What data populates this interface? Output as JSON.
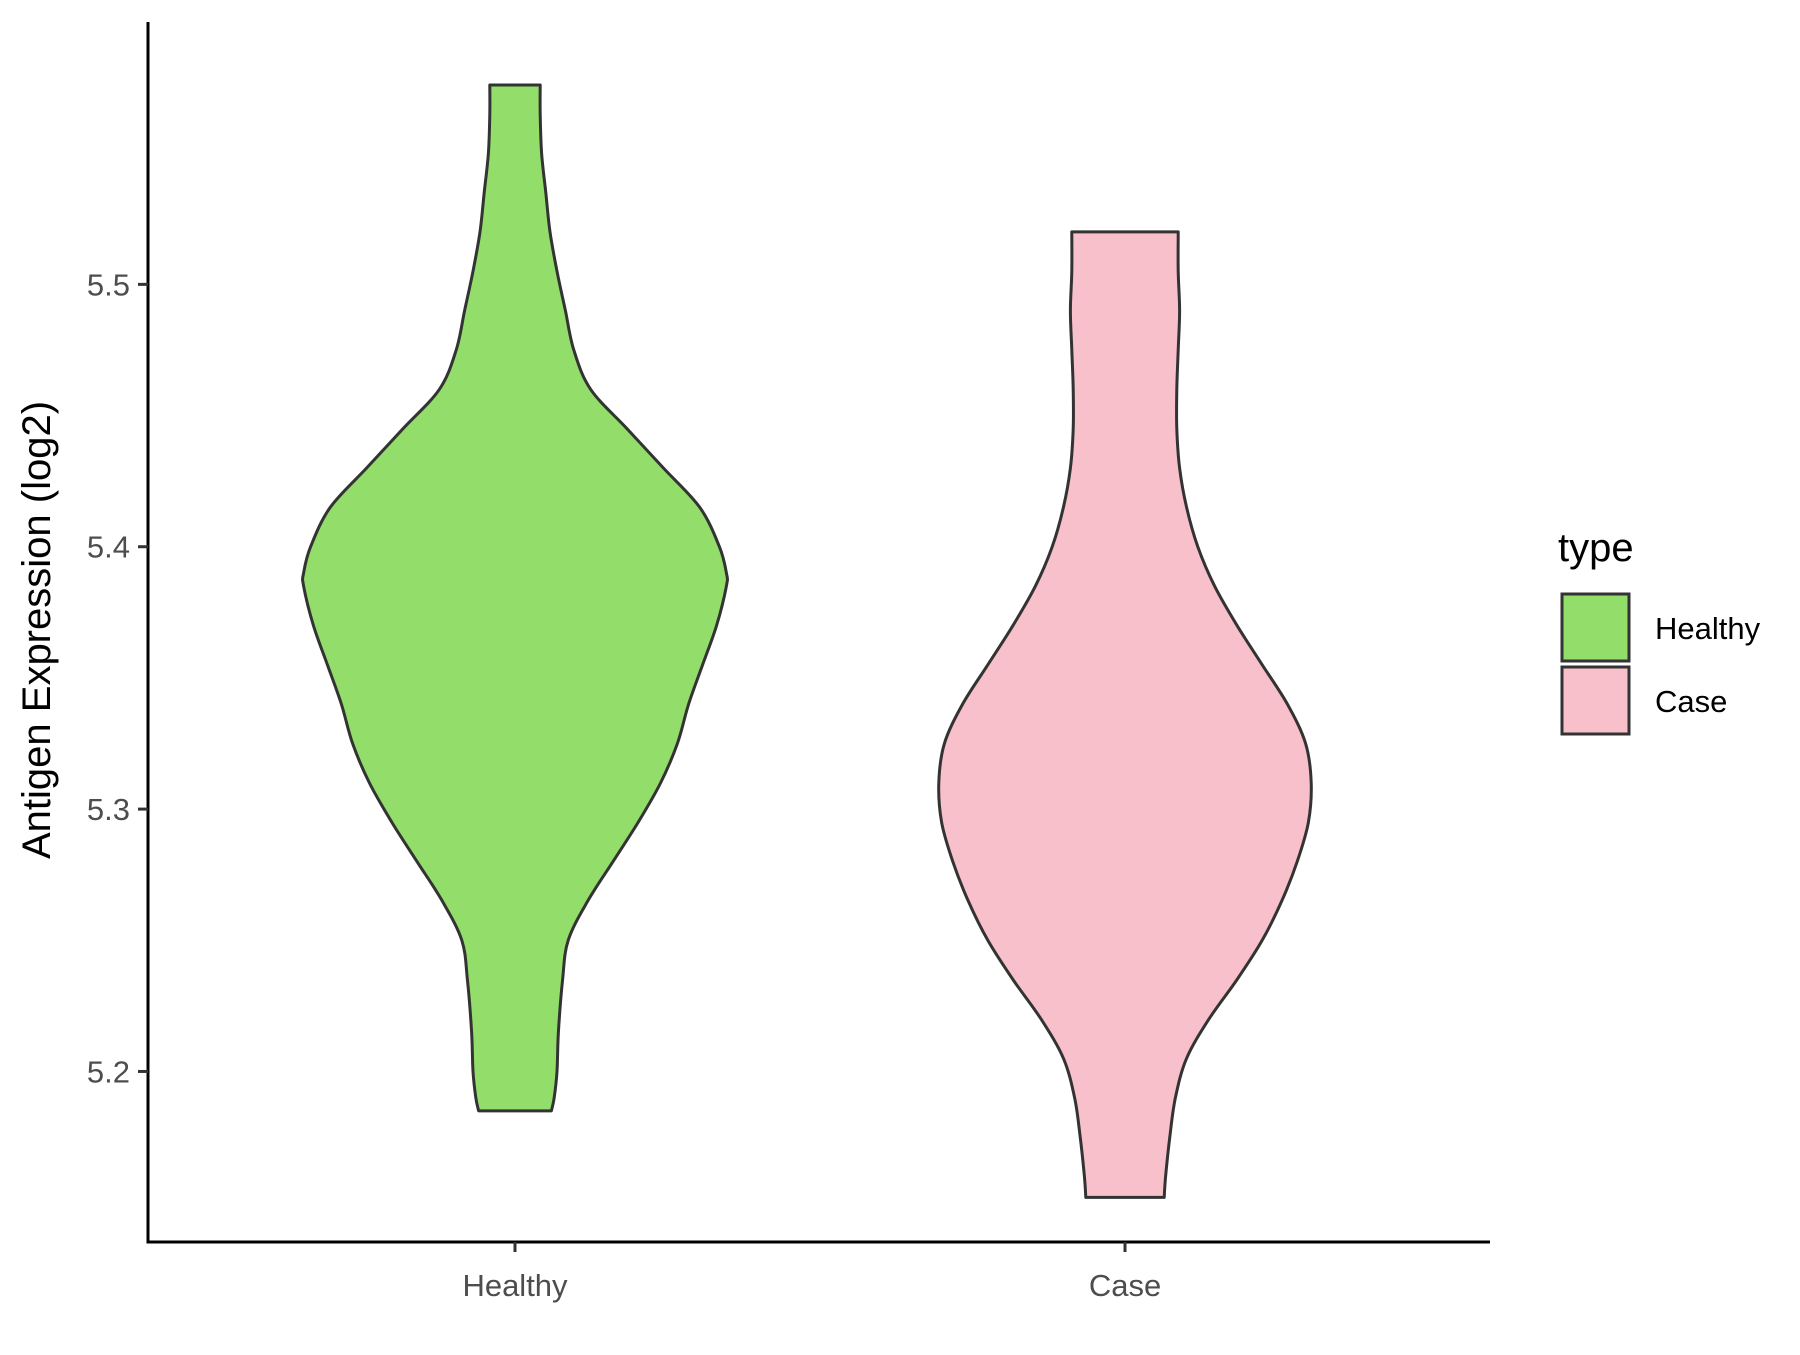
{
  "chart_data": {
    "type": "violin",
    "title": "",
    "xlabel": "",
    "ylabel": "Antigen Expression (log2)",
    "categories": [
      "Healthy",
      "Case"
    ],
    "ylim": [
      5.135,
      5.6
    ],
    "yticks": [
      5.2,
      5.3,
      5.4,
      5.5
    ],
    "ytick_labels": [
      "5.2",
      "5.3",
      "5.4",
      "5.5"
    ],
    "grid": false,
    "legend": {
      "title": "type",
      "position": "right",
      "entries": [
        "Healthy",
        "Case"
      ]
    },
    "series": [
      {
        "name": "Healthy",
        "color": "#93dd6b",
        "min": 5.185,
        "max": 5.576,
        "density_profile": [
          [
            5.185,
            0.13
          ],
          [
            5.19,
            0.14
          ],
          [
            5.2,
            0.15
          ],
          [
            5.215,
            0.155
          ],
          [
            5.235,
            0.17
          ],
          [
            5.25,
            0.19
          ],
          [
            5.265,
            0.26
          ],
          [
            5.28,
            0.35
          ],
          [
            5.295,
            0.44
          ],
          [
            5.31,
            0.52
          ],
          [
            5.325,
            0.58
          ],
          [
            5.34,
            0.62
          ],
          [
            5.355,
            0.67
          ],
          [
            5.37,
            0.72
          ],
          [
            5.385,
            0.755
          ],
          [
            5.39,
            0.755
          ],
          [
            5.4,
            0.73
          ],
          [
            5.415,
            0.66
          ],
          [
            5.43,
            0.53
          ],
          [
            5.445,
            0.4
          ],
          [
            5.46,
            0.27
          ],
          [
            5.475,
            0.21
          ],
          [
            5.49,
            0.18
          ],
          [
            5.505,
            0.15
          ],
          [
            5.52,
            0.125
          ],
          [
            5.535,
            0.11
          ],
          [
            5.55,
            0.095
          ],
          [
            5.565,
            0.09
          ],
          [
            5.576,
            0.09
          ]
        ]
      },
      {
        "name": "Case",
        "color": "#f8c0cb",
        "min": 5.152,
        "max": 5.52,
        "density_profile": [
          [
            5.152,
            0.14
          ],
          [
            5.16,
            0.145
          ],
          [
            5.175,
            0.16
          ],
          [
            5.19,
            0.18
          ],
          [
            5.205,
            0.22
          ],
          [
            5.22,
            0.3
          ],
          [
            5.235,
            0.4
          ],
          [
            5.25,
            0.49
          ],
          [
            5.265,
            0.56
          ],
          [
            5.28,
            0.615
          ],
          [
            5.295,
            0.655
          ],
          [
            5.31,
            0.665
          ],
          [
            5.325,
            0.645
          ],
          [
            5.34,
            0.58
          ],
          [
            5.355,
            0.49
          ],
          [
            5.37,
            0.4
          ],
          [
            5.385,
            0.32
          ],
          [
            5.4,
            0.26
          ],
          [
            5.415,
            0.22
          ],
          [
            5.43,
            0.195
          ],
          [
            5.445,
            0.185
          ],
          [
            5.46,
            0.185
          ],
          [
            5.475,
            0.19
          ],
          [
            5.49,
            0.195
          ],
          [
            5.505,
            0.19
          ],
          [
            5.52,
            0.19
          ]
        ]
      }
    ],
    "style": {
      "outline_color": "#333333",
      "axis_color": "#000000"
    }
  }
}
